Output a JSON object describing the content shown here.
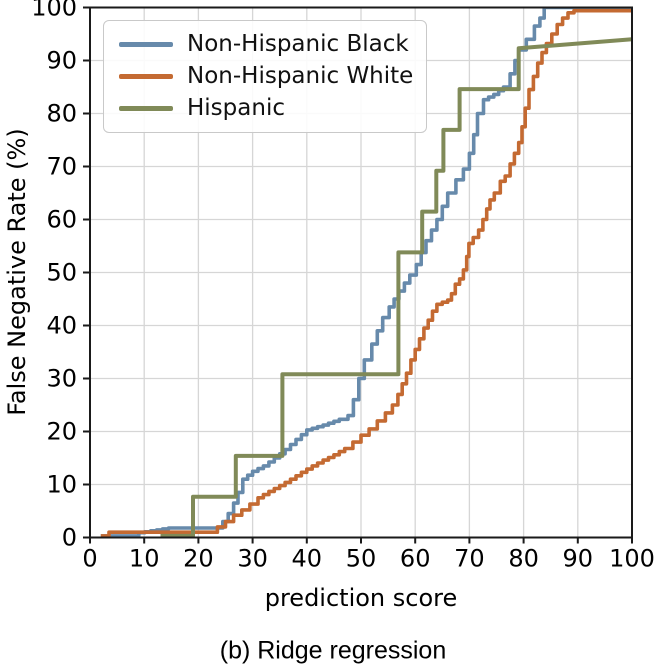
{
  "figure": {
    "caption": "(b) Ridge regression"
  },
  "chart_data": {
    "type": "line",
    "subtype": "step-ecdf",
    "title": "",
    "xlabel": "prediction score",
    "ylabel": "False Negative Rate (%)",
    "xlim": [
      0,
      100
    ],
    "ylim": [
      0,
      100
    ],
    "xticks": [
      0,
      10,
      20,
      30,
      40,
      50,
      60,
      70,
      80,
      90,
      100
    ],
    "yticks": [
      0,
      10,
      20,
      30,
      40,
      50,
      60,
      70,
      80,
      90,
      100
    ],
    "grid": true,
    "legend_position": "upper left",
    "colors": {
      "grid": "#d6d6d6",
      "spine": "#1a1a1a",
      "tick_label": "#000000",
      "legend_border": "#c9c9c9"
    },
    "series": [
      {
        "name": "Non-Hispanic Black",
        "color": "#678aab",
        "style": "jagged",
        "points": [
          [
            2,
            0.3
          ],
          [
            9,
            0.3
          ],
          [
            9,
            0.9
          ],
          [
            14.5,
            1.8
          ],
          [
            23.5,
            1.8
          ],
          [
            24.5,
            3
          ],
          [
            25.5,
            4.5
          ],
          [
            26.5,
            6.5
          ],
          [
            27.3,
            8.5
          ],
          [
            28.2,
            11
          ],
          [
            30,
            12.5
          ],
          [
            32,
            13.5
          ],
          [
            34,
            15
          ],
          [
            36,
            16.6
          ],
          [
            38,
            18.5
          ],
          [
            40,
            20.3
          ],
          [
            43,
            21.2
          ],
          [
            46,
            22.3
          ],
          [
            47.6,
            23
          ],
          [
            48.6,
            26
          ],
          [
            49.6,
            30
          ],
          [
            50.6,
            33.5
          ],
          [
            52,
            36.5
          ],
          [
            54,
            41.5
          ],
          [
            55.2,
            43.5
          ],
          [
            57,
            46.5
          ],
          [
            59,
            49.5
          ],
          [
            60.2,
            51.5
          ],
          [
            62,
            56
          ],
          [
            64,
            60
          ],
          [
            66,
            65
          ],
          [
            67.5,
            67.5
          ],
          [
            68.9,
            69.5
          ],
          [
            70,
            72.5
          ],
          [
            70.8,
            76
          ],
          [
            71.5,
            80
          ],
          [
            72.6,
            82.6
          ],
          [
            74.5,
            83.6
          ],
          [
            76.3,
            85
          ],
          [
            77.5,
            87.5
          ],
          [
            78.4,
            90
          ],
          [
            79.1,
            92
          ],
          [
            80.5,
            94
          ],
          [
            82,
            96.5
          ],
          [
            83,
            98
          ],
          [
            83.8,
            100
          ],
          [
            100,
            100
          ]
        ]
      },
      {
        "name": "Non-Hispanic White",
        "color": "#c46a32",
        "style": "jagged",
        "points": [
          [
            2,
            0.3
          ],
          [
            3.5,
            1
          ],
          [
            22,
            1
          ],
          [
            23.5,
            2
          ],
          [
            25,
            3
          ],
          [
            26.5,
            4.2
          ],
          [
            28,
            5.2
          ],
          [
            29.5,
            6.3
          ],
          [
            31,
            7.5
          ],
          [
            33,
            8.7
          ],
          [
            35,
            9.8
          ],
          [
            37,
            11
          ],
          [
            39,
            12.3
          ],
          [
            41,
            13.5
          ],
          [
            43,
            14.6
          ],
          [
            45,
            15.6
          ],
          [
            47,
            16.8
          ],
          [
            48.5,
            18
          ],
          [
            50,
            19.3
          ],
          [
            51.5,
            20.5
          ],
          [
            53,
            22
          ],
          [
            54.5,
            23.5
          ],
          [
            55.8,
            25
          ],
          [
            56.8,
            27
          ],
          [
            57.6,
            29
          ],
          [
            58.4,
            31
          ],
          [
            59.2,
            33.5
          ],
          [
            60,
            35.5
          ],
          [
            60.8,
            37.5
          ],
          [
            61.6,
            39.5
          ],
          [
            62.4,
            41
          ],
          [
            63.2,
            42.7
          ],
          [
            64,
            44
          ],
          [
            66,
            44.8
          ],
          [
            66.7,
            46
          ],
          [
            67.4,
            47.8
          ],
          [
            68.2,
            48.8
          ],
          [
            68.9,
            50.5
          ],
          [
            69.5,
            53
          ],
          [
            69.9,
            55.5
          ],
          [
            70.7,
            56.6
          ],
          [
            71.7,
            58
          ],
          [
            72.5,
            60
          ],
          [
            73.2,
            62
          ],
          [
            73.8,
            63.7
          ],
          [
            74.6,
            65
          ],
          [
            75.7,
            67.2
          ],
          [
            76.6,
            68.2
          ],
          [
            77.5,
            70.5
          ],
          [
            78.3,
            72.5
          ],
          [
            79.1,
            74.5
          ],
          [
            79.7,
            77.5
          ],
          [
            80.3,
            81
          ],
          [
            81,
            84.5
          ],
          [
            81.8,
            87
          ],
          [
            82.6,
            89.5
          ],
          [
            83.4,
            91.5
          ],
          [
            84.2,
            93.2
          ],
          [
            85.2,
            95
          ],
          [
            86.2,
            96.8
          ],
          [
            87.2,
            98
          ],
          [
            88.2,
            99
          ],
          [
            89.3,
            99.4
          ],
          [
            100,
            99.4
          ]
        ]
      },
      {
        "name": "Hispanic",
        "color": "#808a58",
        "style": "linear",
        "points": [
          [
            13,
            0.3
          ],
          [
            19,
            0.3
          ],
          [
            19,
            7.7
          ],
          [
            26.9,
            7.7
          ],
          [
            26.9,
            15.4
          ],
          [
            35.5,
            15.4
          ],
          [
            35.5,
            30.8
          ],
          [
            56.9,
            30.8
          ],
          [
            56.9,
            53.8
          ],
          [
            61.3,
            53.8
          ],
          [
            61.3,
            61.5
          ],
          [
            63.9,
            61.5
          ],
          [
            63.9,
            69.2
          ],
          [
            65.2,
            69.2
          ],
          [
            65.2,
            76.9
          ],
          [
            68.2,
            76.9
          ],
          [
            68.2,
            84.6
          ],
          [
            79.1,
            84.6
          ],
          [
            79.1,
            92.3
          ],
          [
            100,
            94.0
          ]
        ]
      }
    ]
  }
}
